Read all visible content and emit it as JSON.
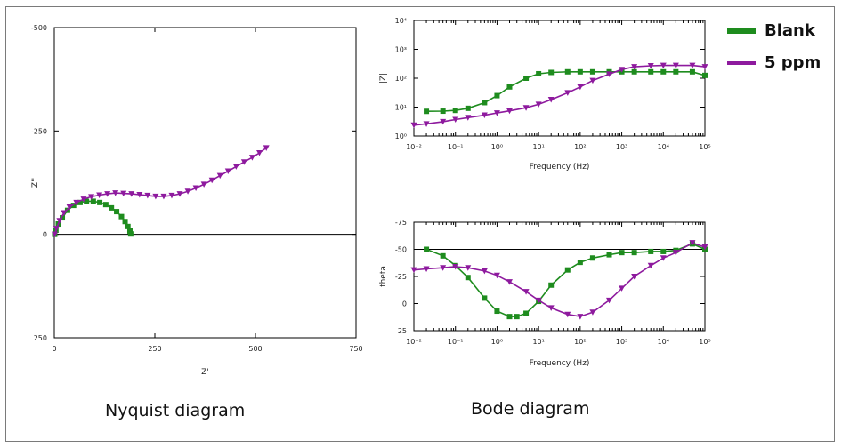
{
  "captions": {
    "nyquist": "Nyquist diagram",
    "bode": "Bode diagram"
  },
  "legend": {
    "items": [
      {
        "label": "Blank",
        "color": "#1e8c1e"
      },
      {
        "label": "5 ppm",
        "color": "#8e1a9e"
      }
    ]
  },
  "colors": {
    "blank": "#1e8c1e",
    "ppm5": "#8e1a9e",
    "axis": "#000000"
  },
  "chart_data": [
    {
      "id": "nyquist",
      "type": "scatter",
      "xlabel": "Z'",
      "ylabel": "Z''",
      "xlim": [
        0,
        750
      ],
      "ylim": [
        -500,
        250
      ],
      "y_inverted": true,
      "xticks": [
        "0",
        "250",
        "500",
        "750"
      ],
      "yticks": [
        "-500",
        "-250",
        "0",
        "250"
      ],
      "zero_line": true,
      "series": [
        {
          "name": "Blank",
          "marker": "square",
          "x": [
            1,
            4,
            10,
            20,
            33,
            48,
            64,
            80,
            97,
            113,
            128,
            142,
            155,
            167,
            176,
            183,
            188,
            190
          ],
          "y": [
            0,
            -10,
            -25,
            -40,
            -58,
            -70,
            -77,
            -80,
            -80,
            -77,
            -72,
            -64,
            -55,
            -43,
            -31,
            -19,
            -8,
            -1
          ]
        },
        {
          "name": "5 ppm",
          "marker": "triangle-down",
          "x": [
            1,
            5,
            13,
            24,
            38,
            55,
            73,
            92,
            112,
            132,
            152,
            172,
            192,
            212,
            232,
            252,
            272,
            292,
            312,
            332,
            352,
            372,
            392,
            412,
            432,
            452,
            472,
            492,
            510,
            527
          ],
          "y": [
            0,
            -14,
            -33,
            -52,
            -66,
            -77,
            -85,
            -91,
            -95,
            -98,
            -100,
            -99,
            -98,
            -96,
            -94,
            -92,
            -92,
            -94,
            -98,
            -104,
            -112,
            -121,
            -131,
            -142,
            -153,
            -164,
            -175,
            -186,
            -197,
            -209
          ]
        }
      ]
    },
    {
      "id": "bode-magnitude",
      "type": "scatter",
      "xlabel": "Frequency (Hz)",
      "ylabel": "|Z|",
      "xscale": "log",
      "yscale": "log",
      "xlim": [
        0.01,
        100000
      ],
      "ylim": [
        1,
        10000
      ],
      "xticks": [
        "10⁻²",
        "10⁻¹",
        "10⁰",
        "10¹",
        "10²",
        "10³",
        "10⁴",
        "10⁵"
      ],
      "yticks": [
        "10⁴",
        "10³",
        "10²",
        "10¹",
        "10⁰"
      ],
      "series": [
        {
          "name": "Blank",
          "marker": "square",
          "x": [
            0.02,
            0.05,
            0.1,
            0.2,
            0.5,
            1,
            2,
            5,
            10,
            20,
            50,
            100,
            200,
            500,
            1000,
            2000,
            5000,
            10000,
            20000,
            50000,
            100000
          ],
          "y": [
            1400,
            1380,
            1300,
            1100,
            700,
            400,
            200,
            100,
            70,
            63,
            60,
            60,
            60,
            60,
            60,
            60,
            60,
            60,
            60,
            60,
            80
          ]
        },
        {
          "name": "5 ppm",
          "marker": "triangle-down",
          "x": [
            0.01,
            0.02,
            0.05,
            0.1,
            0.2,
            0.5,
            1,
            2,
            5,
            10,
            20,
            50,
            100,
            200,
            500,
            1000,
            2000,
            5000,
            10000,
            20000,
            50000,
            100000
          ],
          "y": [
            4200,
            3800,
            3200,
            2700,
            2300,
            1900,
            1600,
            1350,
            1050,
            800,
            550,
            320,
            200,
            120,
            72,
            50,
            40,
            37,
            36,
            36,
            36,
            40
          ]
        }
      ]
    },
    {
      "id": "bode-phase",
      "type": "scatter",
      "xlabel": "Frequency (Hz)",
      "ylabel": "theta",
      "xscale": "log",
      "xlim": [
        0.01,
        100000
      ],
      "ylim": [
        25,
        -75
      ],
      "y_inverted": true,
      "xticks": [
        "10⁻²",
        "10⁻¹",
        "10⁰",
        "10¹",
        "10²",
        "10³",
        "10⁴",
        "10⁵"
      ],
      "yticks": [
        "-75",
        "-50",
        "-25",
        "0",
        "25"
      ],
      "zero_line": true,
      "series": [
        {
          "name": "Blank",
          "marker": "square",
          "x": [
            0.02,
            0.05,
            0.1,
            0.2,
            0.5,
            1,
            2,
            3,
            5,
            10,
            20,
            50,
            100,
            200,
            500,
            1000,
            2000,
            5000,
            10000,
            20000,
            50000,
            100000
          ],
          "y": [
            0,
            -6,
            -15,
            -26,
            -45,
            -57,
            -62,
            -62,
            -59,
            -48,
            -33,
            -19,
            -12,
            -8,
            -5,
            -3,
            -3,
            -2,
            -2,
            -1,
            5,
            0
          ]
        },
        {
          "name": "5 ppm",
          "marker": "triangle-down",
          "x": [
            0.01,
            0.02,
            0.05,
            0.1,
            0.2,
            0.5,
            1,
            2,
            5,
            10,
            20,
            50,
            100,
            200,
            500,
            1000,
            2000,
            5000,
            10000,
            20000,
            50000,
            100000
          ],
          "y": [
            -19,
            -18,
            -17,
            -16,
            -17,
            -20,
            -24,
            -30,
            -39,
            -47,
            -54,
            -60,
            -62,
            -58,
            -47,
            -36,
            -25,
            -15,
            -8,
            -3,
            6,
            2
          ]
        }
      ]
    }
  ]
}
